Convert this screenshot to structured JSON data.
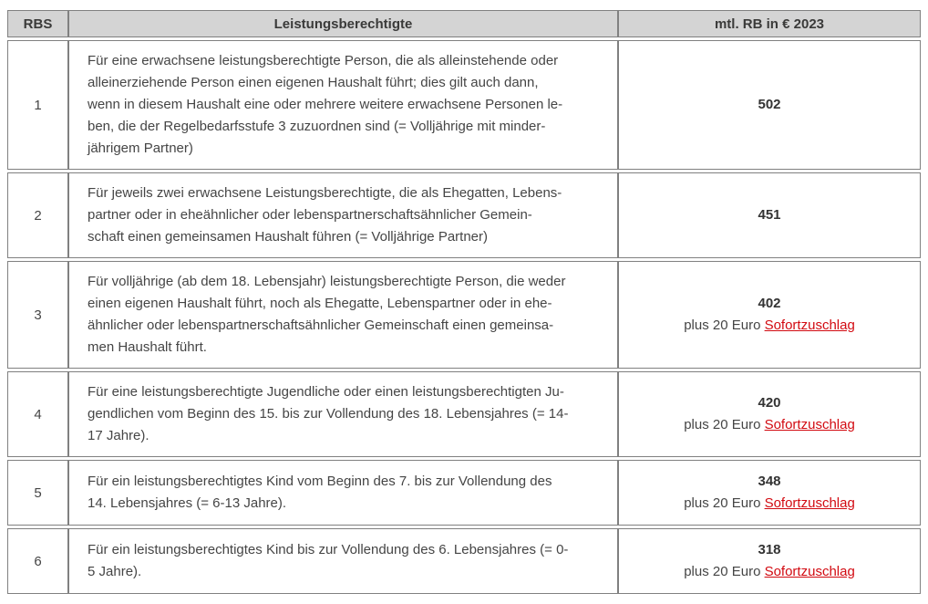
{
  "table": {
    "headers": {
      "rbs": "RBS",
      "beneficiaries": "Leistungsberechtigte",
      "amount": "mtl. RB in € 2023"
    },
    "supplement": {
      "prefix": "plus 20 Euro ",
      "link_label": "Sofortzuschlag"
    },
    "rows": [
      {
        "rbs": "1",
        "description": "Für eine erwachsene leistungsberechtigte Person, die als alleinstehende oder\nalleinerziehende Person einen eigenen Haushalt führt; dies gilt auch dann,\nwenn in diesem Haushalt eine oder mehrere weitere erwachsene Personen le-\nben, die der Regelbedarfsstufe 3 zuzuordnen sind (= Volljährige mit minder-\njährigem Partner)",
        "amount": "502",
        "has_supplement": false
      },
      {
        "rbs": "2",
        "description": "Für jeweils zwei erwachsene Leistungsberechtigte, die als Ehegatten, Lebens-\npartner oder in eheähnlicher oder lebenspartnerschaftsähnlicher Gemein-\nschaft einen gemeinsamen Haushalt führen (= Volljährige Partner)",
        "amount": "451",
        "has_supplement": false
      },
      {
        "rbs": "3",
        "description": "Für volljährige (ab dem 18. Lebensjahr) leistungsberechtigte Person, die weder\neinen eigenen Haushalt führt, noch als Ehegatte, Lebenspartner oder in ehe-\nähnlicher oder lebenspartnerschaftsähnlicher Gemeinschaft einen gemeinsa-\nmen Haushalt führt.",
        "amount": "402",
        "has_supplement": true
      },
      {
        "rbs": "4",
        "description": "Für eine leistungsberechtigte Jugendliche oder einen leistungsberechtigten Ju-\ngendlichen vom Beginn des 15. bis zur Vollendung des 18. Lebensjahres (= 14-\n17 Jahre).",
        "amount": "420",
        "has_supplement": true
      },
      {
        "rbs": "5",
        "description": "Für ein leistungsberechtigtes Kind vom Beginn des 7. bis zur Vollendung des\n14. Lebensjahres (= 6-13 Jahre).",
        "amount": "348",
        "has_supplement": true
      },
      {
        "rbs": "6",
        "description": "Für ein leistungsberechtigtes Kind bis zur Vollendung des 6. Lebensjahres (= 0-\n5 Jahre).",
        "amount": "318",
        "has_supplement": true
      }
    ],
    "colors": {
      "header_bg": "#d4d4d4",
      "border": "#808080",
      "body_text": "#454545",
      "amount_text": "#333333",
      "link_red": "#d20a11"
    }
  }
}
